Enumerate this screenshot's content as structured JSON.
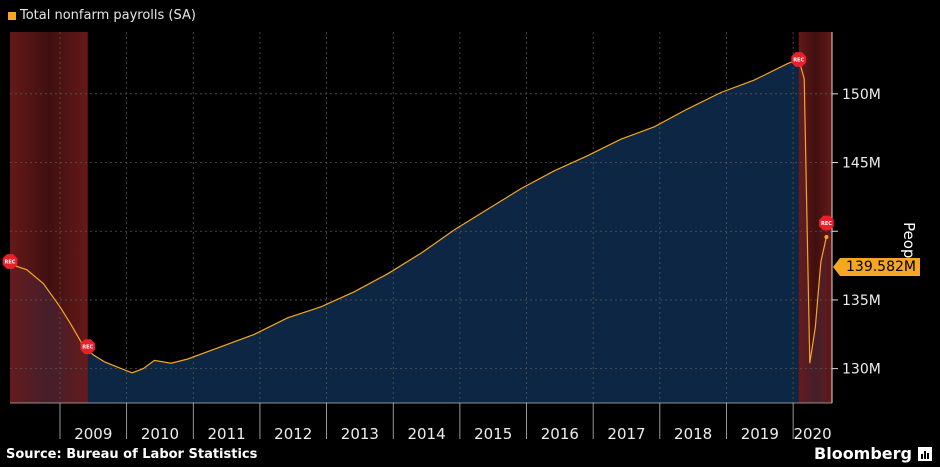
{
  "legend": {
    "label": "Total nonfarm payrolls (SA)"
  },
  "source": "Source: Bureau of Labor Statistics",
  "brand": {
    "label": "Bloomberg",
    "icon": "bloomberg-terminal-icon"
  },
  "last_value": {
    "label": "139.582M",
    "value": 139.582
  },
  "recession_marker_label": "REC",
  "colors": {
    "background": "#000000",
    "area": "#0c2644",
    "line": "#f5a623",
    "accent": "#f5a623",
    "recession": "#6a1a1a",
    "marker": "#e8202a",
    "grid": "#555555"
  },
  "chart_data": {
    "type": "area",
    "title": "",
    "xlabel": "",
    "ylabel": "People",
    "unit": "M",
    "xlim": [
      "2008-04",
      "2020-08"
    ],
    "ylim": [
      127.5,
      154.5
    ],
    "y_ticks": [
      130,
      135,
      140,
      145,
      150
    ],
    "y_tick_labels": [
      "130M",
      "135M",
      "",
      "145M",
      "150M"
    ],
    "x_tick_labels": [
      "2009",
      "2010",
      "2011",
      "2012",
      "2013",
      "2014",
      "2015",
      "2016",
      "2017",
      "2018",
      "2019",
      "2020"
    ],
    "grid": true,
    "legend_position": "top-left",
    "recession_periods": [
      {
        "start": "2008-04",
        "end": "2009-06"
      },
      {
        "start": "2020-02",
        "end": "2020-08"
      }
    ],
    "recession_markers": [
      {
        "date": "2008-04",
        "value": 137.8
      },
      {
        "date": "2009-06",
        "value": 131.6
      },
      {
        "date": "2020-02",
        "value": 152.5
      },
      {
        "date": "2020-07",
        "value": 140.6
      }
    ],
    "series": [
      {
        "name": "Total nonfarm payrolls (SA)",
        "points": [
          [
            "2008-04",
            137.6
          ],
          [
            "2008-07",
            137.2
          ],
          [
            "2008-10",
            136.2
          ],
          [
            "2009-01",
            134.5
          ],
          [
            "2009-03",
            133.2
          ],
          [
            "2009-05",
            131.8
          ],
          [
            "2009-07",
            131.0
          ],
          [
            "2009-09",
            130.5
          ],
          [
            "2009-12",
            130.0
          ],
          [
            "2010-02",
            129.7
          ],
          [
            "2010-04",
            130.0
          ],
          [
            "2010-06",
            130.6
          ],
          [
            "2010-09",
            130.4
          ],
          [
            "2010-12",
            130.7
          ],
          [
            "2011-06",
            131.6
          ],
          [
            "2011-12",
            132.5
          ],
          [
            "2012-06",
            133.7
          ],
          [
            "2012-12",
            134.5
          ],
          [
            "2013-06",
            135.6
          ],
          [
            "2013-12",
            136.9
          ],
          [
            "2014-06",
            138.4
          ],
          [
            "2014-12",
            140.1
          ],
          [
            "2015-06",
            141.6
          ],
          [
            "2015-12",
            143.1
          ],
          [
            "2016-06",
            144.4
          ],
          [
            "2016-12",
            145.5
          ],
          [
            "2017-06",
            146.7
          ],
          [
            "2017-12",
            147.6
          ],
          [
            "2018-06",
            148.9
          ],
          [
            "2018-12",
            150.1
          ],
          [
            "2019-06",
            151.0
          ],
          [
            "2019-12",
            152.2
          ],
          [
            "2020-02",
            152.5
          ],
          [
            "2020-03",
            151.1
          ],
          [
            "2020-04",
            130.4
          ],
          [
            "2020-05",
            133.0
          ],
          [
            "2020-06",
            137.8
          ],
          [
            "2020-07",
            139.582
          ]
        ]
      }
    ]
  }
}
